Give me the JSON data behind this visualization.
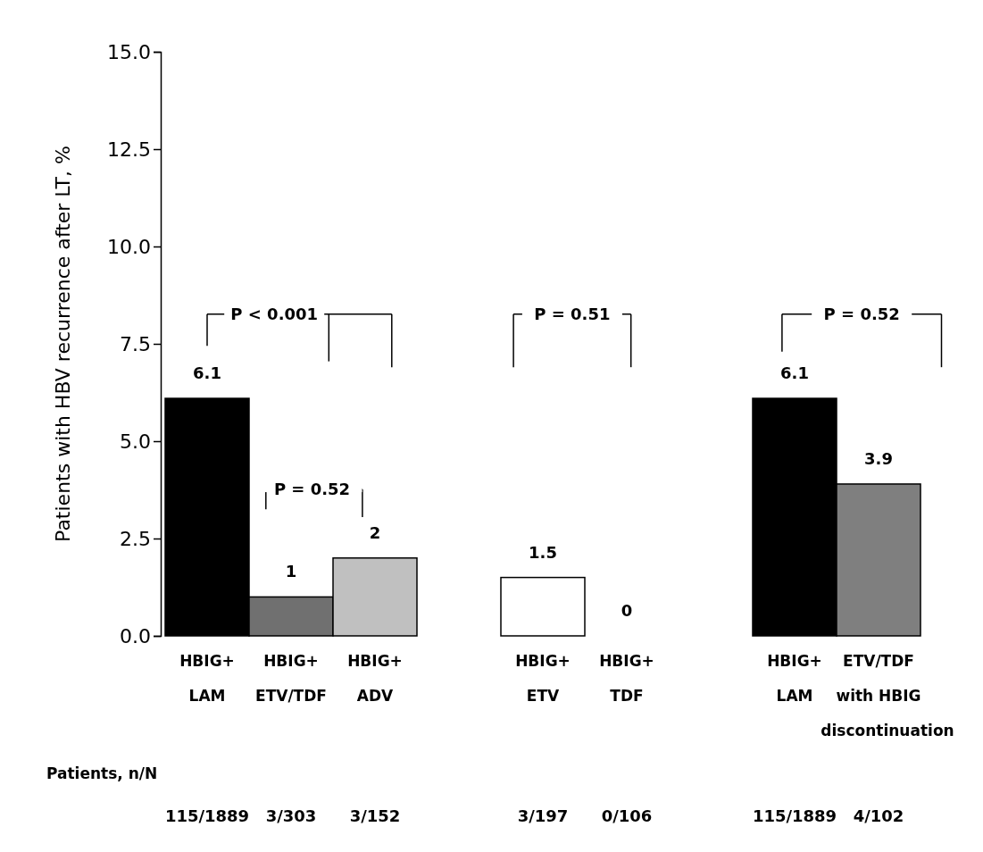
{
  "chart_data": {
    "type": "bar",
    "ylabel": "Patients with HBV recurrence after LT, %",
    "categories": [
      "HBIG+\nLAM",
      "HBIG+\nETV/TDF",
      "HBIG+\nADV",
      null,
      "HBIG+\nETV",
      "HBIG+\nTDF",
      null,
      "HBIG+\nLAM",
      "ETV/TDF\nwith HBIG\ndiscontinuation"
    ],
    "values": [
      6.1,
      1,
      2,
      null,
      1.5,
      0,
      null,
      6.1,
      3.9
    ],
    "colors": [
      "#000000",
      "#707070",
      "#c0c0c0",
      null,
      "#ffffff",
      "#ffffff",
      null,
      "#000000",
      "#7f7f7f"
    ],
    "data_labels": true,
    "ylim": [
      0,
      15
    ],
    "yticks": [
      {
        "value": 0,
        "label": "0.0"
      },
      {
        "value": 2.5,
        "label": "2.5"
      },
      {
        "value": 5,
        "label": "5.0"
      },
      {
        "value": 7.5,
        "label": "7.5"
      },
      {
        "value": 10,
        "label": "10.0"
      },
      {
        "value": 12.5,
        "label": "12.5"
      },
      {
        "value": 15,
        "label": "15.0"
      }
    ],
    "grid": false,
    "annotations": [
      "P < 0.001",
      "P = 0.52",
      "P = 0.51",
      "P = 0.52",
      "Patients, n/N",
      "115/1889",
      "3/303",
      "3/152",
      "3/197",
      "0/106",
      "115/1889",
      "4/102"
    ]
  }
}
